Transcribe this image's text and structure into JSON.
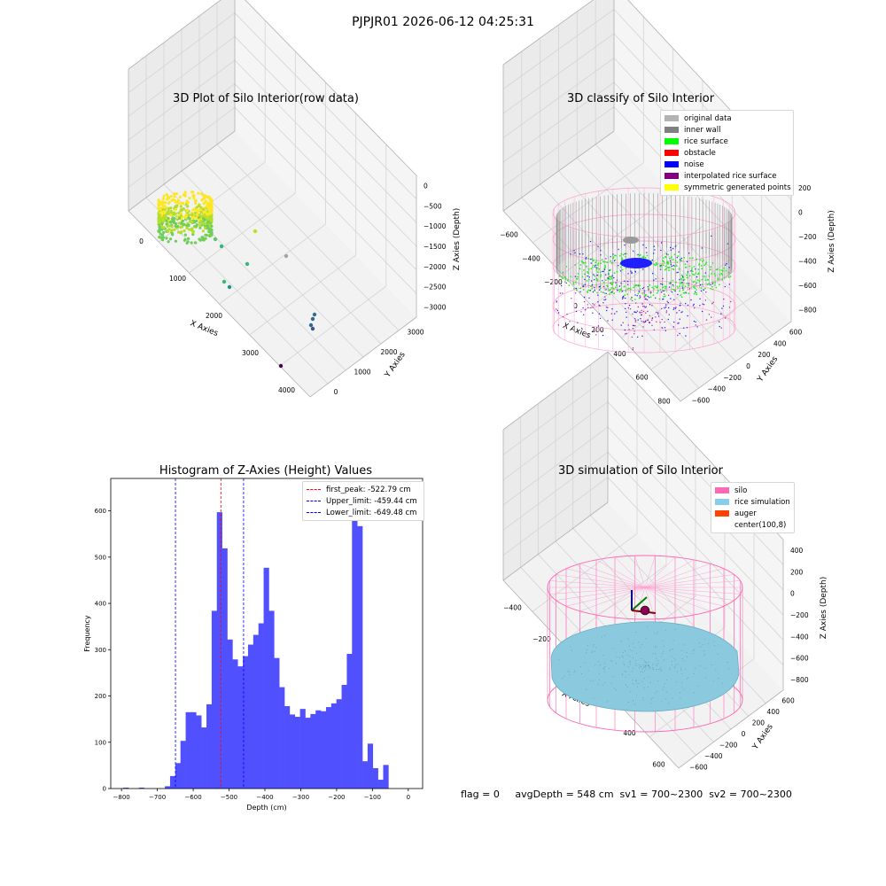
{
  "figure": {
    "title": "PJPJR01 2026-06-12 04:25:31",
    "status_line": "flag = 0     avgDepth = 548 cm  sv1 = 700~2300  sv2 = 700~2300"
  },
  "chart_data": [
    {
      "type": "scatter",
      "subtype": "3d",
      "title": "3D Plot of Silo Interior(row data)",
      "xlabel": "X Axies",
      "ylabel": "Y Axies",
      "zlabel": "Z Axies (Depth)",
      "x_ticks": [
        "0",
        "1000",
        "2000",
        "3000",
        "4000"
      ],
      "y_ticks": [
        "0",
        "1000",
        "2000",
        "3000"
      ],
      "z_ticks": [
        "0",
        "−500",
        "−1000",
        "−1500",
        "−2000",
        "−2500",
        "−3000"
      ],
      "grid": true,
      "colormap": [
        "#440154",
        "#31688e",
        "#35b779",
        "#fde725"
      ]
    },
    {
      "type": "scatter",
      "subtype": "3d",
      "title": "3D classify of Silo Interior",
      "xlabel": "X Axies",
      "ylabel": "Y Axies",
      "zlabel": "Z Axies (Depth)",
      "x_ticks": [
        "−600",
        "−400",
        "−200",
        "0",
        "200",
        "400",
        "600",
        "800"
      ],
      "y_ticks": [
        "−600",
        "−400",
        "−200",
        "0",
        "200",
        "400",
        "600"
      ],
      "z_ticks": [
        "200",
        "0",
        "−200",
        "−400",
        "−600",
        "−800"
      ],
      "grid": true,
      "legend_position": "top-right",
      "legend": [
        {
          "label": "original data",
          "color": "#b3b3b3"
        },
        {
          "label": "inner wall",
          "color": "#808080"
        },
        {
          "label": "rice surface",
          "color": "#00ff00"
        },
        {
          "label": "obstacle",
          "color": "#ff0000"
        },
        {
          "label": "noise",
          "color": "#0000ff"
        },
        {
          "label": "interpolated rice surface",
          "color": "#800080"
        },
        {
          "label": "symmetric generated points",
          "color": "#ffff00"
        }
      ]
    },
    {
      "type": "bar",
      "subtype": "histogram",
      "title": "Histogram of Z-Axies (Height) Values",
      "xlabel": "Depth (cm)",
      "ylabel": "Frequency",
      "xlim": [
        -830,
        40
      ],
      "ylim": [
        0,
        670
      ],
      "x_ticks": [
        -800,
        -700,
        -600,
        -500,
        -400,
        -300,
        -200,
        -100,
        0
      ],
      "y_ticks": [
        0,
        100,
        200,
        300,
        400,
        500,
        600
      ],
      "bin_width": 14.5,
      "bins_start": -795,
      "values": [
        2,
        0,
        0,
        2,
        0,
        0,
        0,
        0,
        5,
        27,
        55,
        103,
        165,
        165,
        158,
        132,
        182,
        384,
        597,
        519,
        322,
        279,
        264,
        286,
        311,
        332,
        357,
        477,
        384,
        282,
        219,
        178,
        160,
        155,
        172,
        153,
        161,
        169,
        167,
        176,
        184,
        193,
        224,
        291,
        593,
        567,
        59,
        97,
        44,
        19,
        51
      ],
      "bar_color": "#5050ff",
      "vlines": [
        {
          "x": -522.79,
          "label": "first_peak: -522.79 cm",
          "color": "#ff0000"
        },
        {
          "x": -459.44,
          "label": "Upper_limit: -459.44 cm",
          "color": "#0000ff"
        },
        {
          "x": -649.48,
          "label": "Lower_limit: -649.48 cm",
          "color": "#0000ff"
        }
      ],
      "legend_position": "top-right",
      "grid": false
    },
    {
      "type": "scatter",
      "subtype": "3d",
      "title": "3D simulation of Silo Interior",
      "xlabel": "X Axies",
      "ylabel": "Y Axies",
      "zlabel": "Z Axies (Depth)",
      "x_ticks": [
        "−400",
        "−200",
        "0",
        "200",
        "400",
        "600"
      ],
      "y_ticks": [
        "−600",
        "−400",
        "−200",
        "0",
        "200",
        "400",
        "600"
      ],
      "z_ticks": [
        "400",
        "200",
        "0",
        "−200",
        "−400",
        "−600",
        "−800"
      ],
      "grid": true,
      "legend_position": "top-right",
      "legend": [
        {
          "label": "silo",
          "color": "#ff69b4"
        },
        {
          "label": "rice simulation",
          "color": "#87ceeb"
        },
        {
          "label": "auger",
          "color": "#ff4500"
        },
        {
          "label": "center(100,8)",
          "color": ""
        }
      ]
    }
  ]
}
